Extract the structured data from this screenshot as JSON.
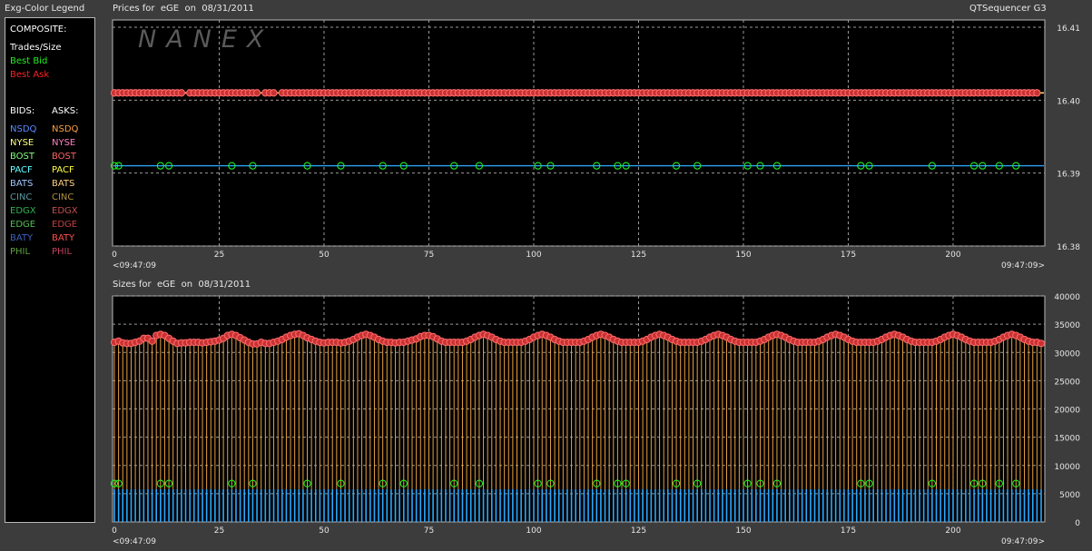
{
  "window": {
    "legend_title": "Exg-Color Legend",
    "brand": "QTSequencer G3",
    "watermark": "NANEX"
  },
  "legend": {
    "composite_header": "COMPOSITE:",
    "composite": [
      {
        "label": "Trades/Size",
        "color": "#ffffff"
      },
      {
        "label": "Best Bid",
        "color": "#22ee22"
      },
      {
        "label": "Best Ask",
        "color": "#ff2222"
      }
    ],
    "bids_header": "BIDS:",
    "asks_header": "ASKS:",
    "bids": [
      {
        "label": "NSDQ",
        "color": "#5a8cff"
      },
      {
        "label": "NYSE",
        "color": "#ffff80"
      },
      {
        "label": "BOST",
        "color": "#80ff80"
      },
      {
        "label": "PACF",
        "color": "#60ffff"
      },
      {
        "label": "BATS",
        "color": "#a0c8ff"
      },
      {
        "label": "CINC",
        "color": "#5a9aa0"
      },
      {
        "label": "EDGX",
        "color": "#30b050"
      },
      {
        "label": "EDGE",
        "color": "#50c050"
      },
      {
        "label": "BATY",
        "color": "#4060c0"
      },
      {
        "label": "PHIL",
        "color": "#60a040"
      }
    ],
    "asks": [
      {
        "label": "NSDQ",
        "color": "#ffa040"
      },
      {
        "label": "NYSE",
        "color": "#ff80c0"
      },
      {
        "label": "BOST",
        "color": "#ff6060"
      },
      {
        "label": "PACF",
        "color": "#ffff40"
      },
      {
        "label": "BATS",
        "color": "#ffd080"
      },
      {
        "label": "CINC",
        "color": "#b09040"
      },
      {
        "label": "EDGX",
        "color": "#c05050"
      },
      {
        "label": "EDGE",
        "color": "#c04040"
      },
      {
        "label": "BATY",
        "color": "#ff5050"
      },
      {
        "label": "PHIL",
        "color": "#c04060"
      }
    ]
  },
  "chart_data": [
    {
      "type": "line",
      "title": "Prices for  eGE  on  08/31/2011",
      "x_ticks": [
        0,
        25,
        50,
        75,
        100,
        125,
        150,
        175,
        200
      ],
      "xlim": [
        0,
        221
      ],
      "x_start_label": "<09:47:09",
      "x_end_label": "09:47:09>",
      "ylim": [
        16.38,
        16.41
      ],
      "y_ticks": [
        16.41,
        16.4,
        16.39,
        16.38
      ],
      "y_tick_labels": [
        "16.41",
        "16.40",
        "16.39",
        "16.38"
      ],
      "grid": true,
      "series": [
        {
          "role": "ask",
          "color": "#ffff55",
          "marker_color": "#c83232",
          "value": 16.401,
          "points": [
            0,
            1,
            2,
            3,
            4,
            5,
            6,
            7,
            8,
            9,
            10,
            11,
            12,
            13,
            14,
            15,
            16,
            18,
            19,
            20,
            21,
            22,
            23,
            24,
            25,
            26,
            27,
            28,
            29,
            30,
            31,
            32,
            33,
            34,
            36,
            37,
            38,
            40,
            41,
            42,
            43,
            44,
            45,
            46,
            47,
            48,
            49,
            50,
            51,
            52,
            53,
            54,
            55,
            56,
            57,
            58,
            59,
            60,
            61,
            62,
            63,
            64,
            65,
            66,
            67,
            68,
            69,
            70,
            71,
            72,
            73,
            74,
            75,
            76,
            77,
            78,
            79,
            80,
            81,
            82,
            83,
            84,
            85,
            86,
            87,
            88,
            89,
            90,
            91,
            92,
            93,
            94,
            95,
            96,
            97,
            98,
            99,
            100,
            101,
            102,
            103,
            104,
            105,
            106,
            107,
            108,
            109,
            110,
            111,
            112,
            113,
            114,
            115,
            116,
            117,
            118,
            119,
            120,
            121,
            122,
            123,
            124,
            125,
            126,
            127,
            128,
            129,
            130,
            131,
            132,
            133,
            134,
            135,
            136,
            137,
            138,
            139,
            140,
            141,
            142,
            143,
            144,
            145,
            146,
            147,
            148,
            149,
            150,
            151,
            152,
            153,
            154,
            155,
            156,
            157,
            158,
            159,
            160,
            161,
            162,
            163,
            164,
            165,
            166,
            167,
            168,
            169,
            170,
            171,
            172,
            173,
            174,
            175,
            176,
            177,
            178,
            179,
            180,
            181,
            182,
            183,
            184,
            185,
            186,
            187,
            188,
            189,
            190,
            191,
            192,
            193,
            194,
            195,
            196,
            197,
            198,
            199,
            200,
            201,
            202,
            203,
            204,
            205,
            206,
            207,
            208,
            209,
            210,
            211,
            212,
            213,
            214,
            215,
            216,
            217,
            218,
            219,
            220
          ]
        },
        {
          "role": "bid",
          "color": "#2aa8ff",
          "marker_color": "#22ee22",
          "value": 16.391,
          "points": [
            0,
            1,
            11,
            13,
            28,
            33,
            46,
            54,
            64,
            69,
            81,
            87,
            101,
            104,
            115,
            120,
            122,
            134,
            139,
            151,
            154,
            158,
            178,
            180,
            195,
            205,
            207,
            211,
            215
          ]
        }
      ]
    },
    {
      "type": "bar",
      "title": "Sizes for  eGE  on  08/31/2011",
      "x_ticks": [
        0,
        25,
        50,
        75,
        100,
        125,
        150,
        175,
        200
      ],
      "xlim": [
        0,
        221
      ],
      "x_start_label": "<09:47:09",
      "x_end_label": "09:47:09>",
      "ylim": [
        0,
        40000
      ],
      "y_ticks": [
        40000,
        35000,
        30000,
        25000,
        20000,
        15000,
        10000,
        5000,
        0
      ],
      "grid": true,
      "series": [
        {
          "name": "ask size",
          "color": "#e8a040",
          "marker_color": "#c83232",
          "values": [
            31800,
            32000,
            31700,
            31600,
            31600,
            31800,
            32000,
            32500,
            32500,
            32000,
            33000,
            33200,
            33000,
            32500,
            32000,
            31600,
            31700,
            31700,
            31800,
            31800,
            31800,
            31700,
            31800,
            31900,
            32000,
            32200,
            32500,
            33000,
            33200,
            33000,
            32600,
            32200,
            31800,
            31500,
            31500,
            31800,
            31600,
            31600,
            31800,
            32000,
            32300,
            32700,
            33000,
            33200,
            33300,
            33000,
            32600,
            32300,
            32000,
            31800,
            31700,
            31800,
            31800,
            31800,
            31700,
            31800,
            32000,
            32300,
            32700,
            33000,
            33200,
            33000,
            32700,
            32300,
            32000,
            31800,
            31800,
            31700,
            31800,
            31800,
            32000,
            32200,
            32400,
            32800,
            33000,
            33000,
            32800,
            32400,
            32000,
            31800,
            31800,
            31800,
            31800,
            31800,
            32000,
            32300,
            32700,
            33000,
            33200,
            33000,
            32700,
            32300,
            32000,
            31800,
            31800,
            31800,
            31800,
            31800,
            32000,
            32300,
            32700,
            33000,
            33200,
            33000,
            32700,
            32300,
            32000,
            31800,
            31800,
            31800,
            31800,
            31800,
            32000,
            32300,
            32700,
            33000,
            33200,
            33000,
            32700,
            32300,
            32000,
            31800,
            31800,
            31800,
            31800,
            31800,
            32000,
            32300,
            32700,
            33000,
            33200,
            33000,
            32700,
            32300,
            32000,
            31800,
            31800,
            31800,
            31800,
            31800,
            32000,
            32300,
            32700,
            33000,
            33200,
            33000,
            32700,
            32300,
            32000,
            31800,
            31800,
            31800,
            31800,
            31800,
            32000,
            32300,
            32700,
            33000,
            33200,
            33000,
            32700,
            32300,
            32000,
            31800,
            31800,
            31800,
            31800,
            31800,
            32000,
            32300,
            32700,
            33000,
            33200,
            33000,
            32700,
            32300,
            32000,
            31800,
            31800,
            31800,
            31800,
            31800,
            32000,
            32300,
            32700,
            33000,
            33200,
            33000,
            32700,
            32300,
            32000,
            31800,
            31800,
            31800,
            31800,
            31800,
            32000,
            32300,
            32700,
            33000,
            33200,
            33000,
            32700,
            32300,
            32000,
            31800,
            31800,
            31800,
            31800,
            31800,
            32000,
            32300,
            32700,
            33000,
            33200,
            33000,
            32700,
            32300,
            32000,
            31800,
            31800,
            31600
          ]
        },
        {
          "name": "bid size",
          "color": "#2aa8ff",
          "marker_color": "#22ee22",
          "value": 5800,
          "points": [
            0,
            1,
            11,
            13,
            28,
            33,
            46,
            54,
            64,
            69,
            81,
            87,
            101,
            104,
            115,
            120,
            122,
            134,
            139,
            151,
            154,
            158,
            178,
            180,
            195,
            205,
            207,
            211,
            215
          ],
          "marker_value": 6800
        }
      ]
    }
  ]
}
